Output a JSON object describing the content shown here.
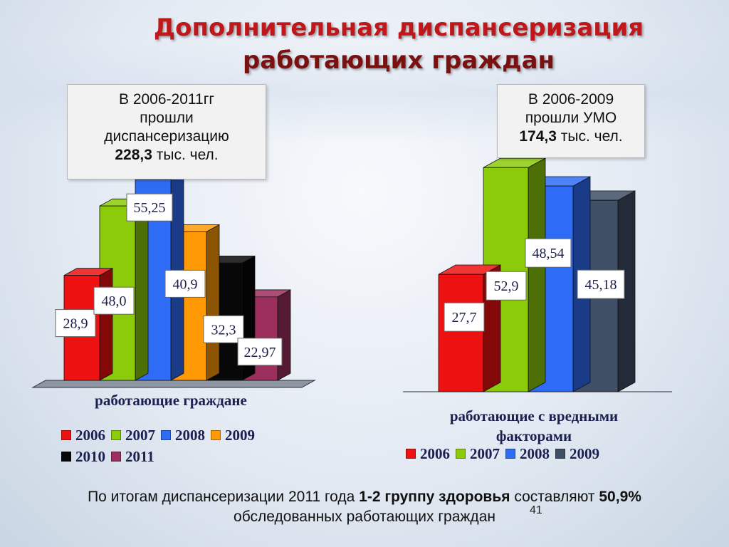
{
  "title": {
    "line1": "Дополнительная диспансеризация",
    "line2": "работающих граждан"
  },
  "box_left": {
    "line1": "В 2006-2011гг",
    "line2": "прошли",
    "line3": "диспансеризацию",
    "value": "228,3",
    "unit": " тыс. чел."
  },
  "box_right": {
    "line1": "В 2006-2009",
    "line2": "прошли УМО",
    "value": "174,3",
    "unit": " тыс. чел."
  },
  "chart_data": [
    {
      "type": "bar",
      "categories": [
        "работающие граждане"
      ],
      "series": [
        {
          "name": "2006",
          "values": [
            28.9
          ],
          "label": "28,9"
        },
        {
          "name": "2007",
          "values": [
            48.0
          ],
          "label": "48,0"
        },
        {
          "name": "2008",
          "values": [
            55.25
          ],
          "label": "55,25"
        },
        {
          "name": "2009",
          "values": [
            40.9
          ],
          "label": "40,9"
        },
        {
          "name": "2010",
          "values": [
            32.3
          ],
          "label": "32,3"
        },
        {
          "name": "2011",
          "values": [
            22.97
          ],
          "label": "22,97"
        }
      ],
      "legend": "bottom",
      "colors": [
        "#ee1111",
        "#8ccb0a",
        "#2f6cf5",
        "#ff9a06",
        "#080808",
        "#9c2f5e"
      ]
    },
    {
      "type": "bar",
      "categories": [
        "работающие с вредными факторами"
      ],
      "series": [
        {
          "name": "2006",
          "values": [
            27.7
          ],
          "label": "27,7"
        },
        {
          "name": "2007",
          "values": [
            52.9
          ],
          "label": "52,9"
        },
        {
          "name": "2008",
          "values": [
            48.54
          ],
          "label": "48,54"
        },
        {
          "name": "2009",
          "values": [
            45.18
          ],
          "label": "45,18"
        }
      ],
      "legend": "bottom",
      "colors": [
        "#ee1111",
        "#8ccb0a",
        "#2f6cf5",
        "#3f4f66"
      ]
    }
  ],
  "left_category_label": "работающие граждане",
  "right_category_label_line1": "работающие с вредными",
  "right_category_label_line2": "факторами",
  "footer": {
    "part1": "По итогам диспансеризации 2011 года ",
    "bold1": "1-2 группу здоровья",
    "part2": " составляют ",
    "bold2": "50,9%",
    "line2": "обследованных работающих граждан"
  },
  "page_number": "41"
}
